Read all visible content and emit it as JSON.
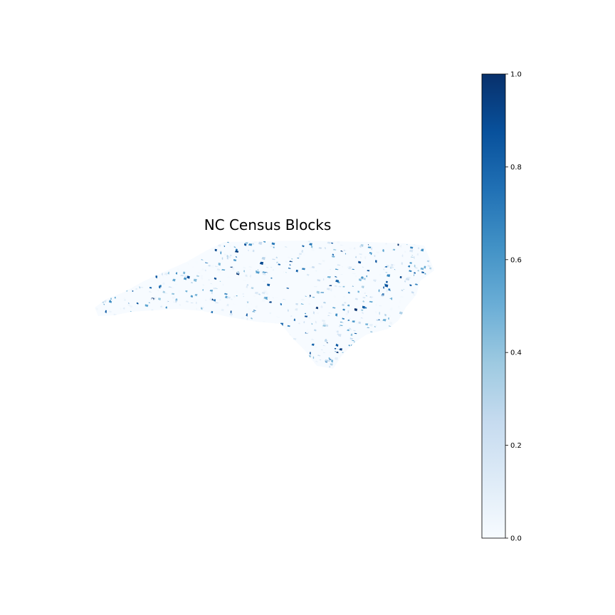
{
  "map": {
    "title": "NC Census Blocks",
    "colormap": "Blues",
    "colormap_stops": [
      "#f7fbff",
      "#deebf7",
      "#c6dbef",
      "#9ecae1",
      "#6baed6",
      "#4292c6",
      "#2171b5",
      "#08519c",
      "#08306b"
    ]
  },
  "colorbar": {
    "min": 0.0,
    "max": 1.0,
    "ticks": [
      {
        "value": 0.0,
        "label": "0.0"
      },
      {
        "value": 0.2,
        "label": "0.2"
      },
      {
        "value": 0.4,
        "label": "0.4"
      },
      {
        "value": 0.6,
        "label": "0.6"
      },
      {
        "value": 0.8,
        "label": "0.8"
      },
      {
        "value": 1.0,
        "label": "1.0"
      }
    ]
  }
}
